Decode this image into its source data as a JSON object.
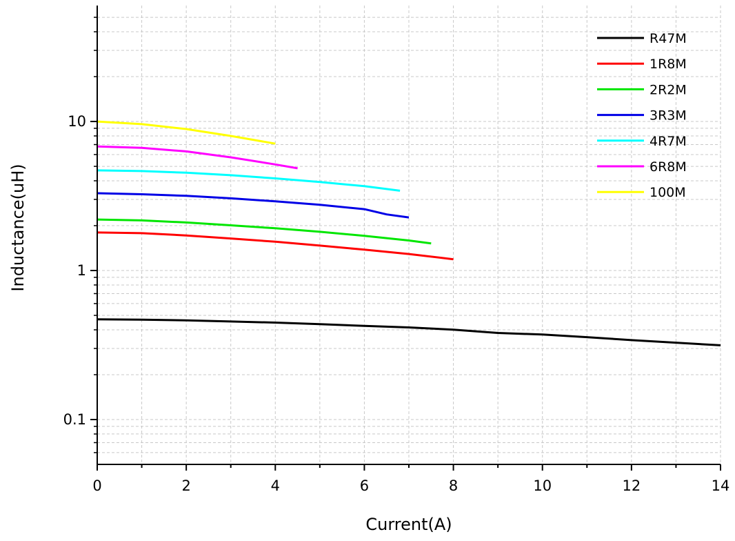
{
  "chart_data": {
    "type": "line",
    "title": "",
    "xlabel": "Current(A)",
    "ylabel": "Inductance(uH)",
    "xlim": [
      0,
      14
    ],
    "ylim": [
      0.05,
      60
    ],
    "y_scale": "log",
    "grid": true,
    "legend_position": "top-right",
    "x_ticks": [
      {
        "value": 0,
        "label": "0"
      },
      {
        "value": 2,
        "label": "2"
      },
      {
        "value": 4,
        "label": "4"
      },
      {
        "value": 6,
        "label": "6"
      },
      {
        "value": 8,
        "label": "8"
      },
      {
        "value": 10,
        "label": "10"
      },
      {
        "value": 12,
        "label": "12"
      },
      {
        "value": 14,
        "label": "14"
      }
    ],
    "y_ticks": [
      {
        "value": 0.1,
        "label": "0.1"
      },
      {
        "value": 1,
        "label": "1"
      },
      {
        "value": 10,
        "label": "10"
      }
    ],
    "series": [
      {
        "name": "R47M",
        "color": "#000000",
        "x": [
          0,
          1,
          2,
          3,
          4,
          5,
          6,
          7,
          8,
          9,
          10,
          11,
          12,
          13,
          14
        ],
        "y": [
          0.47,
          0.468,
          0.463,
          0.455,
          0.447,
          0.437,
          0.425,
          0.415,
          0.401,
          0.381,
          0.372,
          0.357,
          0.341,
          0.328,
          0.315
        ]
      },
      {
        "name": "1R8M",
        "color": "#ff0000",
        "x": [
          0,
          1,
          2,
          3,
          4,
          5,
          6,
          7,
          8
        ],
        "y": [
          1.8,
          1.78,
          1.72,
          1.64,
          1.56,
          1.47,
          1.38,
          1.29,
          1.19
        ]
      },
      {
        "name": "2R2M",
        "color": "#00e600",
        "x": [
          0,
          1,
          2,
          3,
          4,
          5,
          6,
          7,
          7.5
        ],
        "y": [
          2.2,
          2.17,
          2.1,
          2.01,
          1.92,
          1.82,
          1.71,
          1.59,
          1.52
        ]
      },
      {
        "name": "3R3M",
        "color": "#0000e6",
        "x": [
          0,
          1,
          2,
          3,
          4,
          5,
          6,
          6.5,
          7
        ],
        "y": [
          3.3,
          3.25,
          3.17,
          3.05,
          2.91,
          2.76,
          2.58,
          2.38,
          2.27
        ]
      },
      {
        "name": "4R7M",
        "color": "#00ffff",
        "x": [
          0,
          1,
          2,
          3,
          4,
          5,
          6,
          6.8
        ],
        "y": [
          4.7,
          4.65,
          4.53,
          4.36,
          4.15,
          3.93,
          3.68,
          3.43
        ]
      },
      {
        "name": "6R8M",
        "color": "#ff00ff",
        "x": [
          0,
          1,
          2,
          3,
          4,
          4.5
        ],
        "y": [
          6.8,
          6.65,
          6.3,
          5.75,
          5.15,
          4.85
        ]
      },
      {
        "name": "100M",
        "color": "#ffff00",
        "x": [
          0,
          1,
          2,
          3,
          4
        ],
        "y": [
          10.0,
          9.6,
          8.9,
          8.0,
          7.1
        ]
      }
    ]
  }
}
